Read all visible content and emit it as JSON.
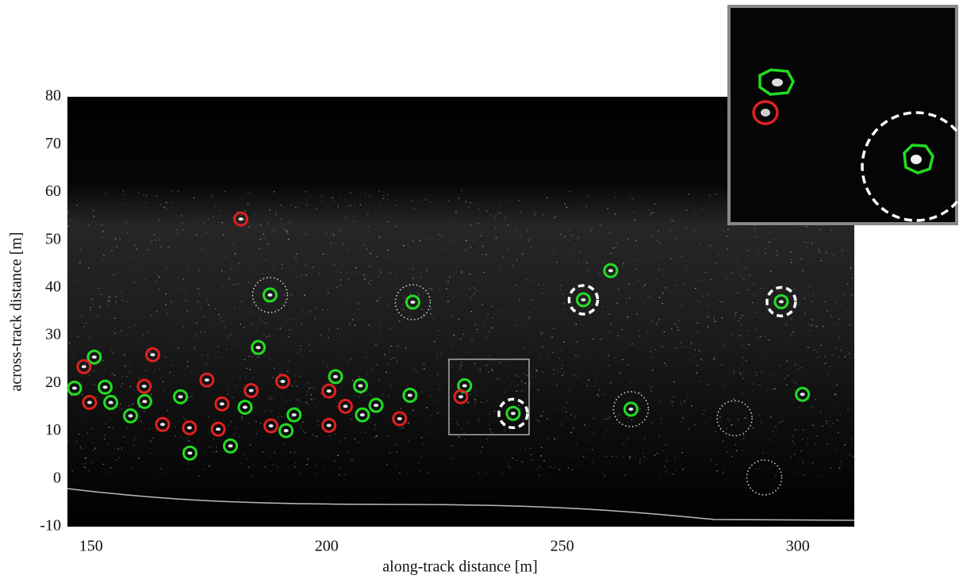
{
  "chart_data": {
    "type": "scatter",
    "x_label": "along-track distance [m]",
    "y_label": "across-track distance [m]",
    "xlim": [
      145,
      312
    ],
    "xticks": [
      150,
      200,
      250,
      300
    ],
    "ylim": [
      -10,
      80
    ],
    "yticks": [
      -10,
      0,
      10,
      20,
      30,
      40,
      50,
      60,
      70,
      80
    ],
    "grid": false,
    "series": [
      {
        "color": "#22dd22",
        "marker": "solid",
        "x": [
          188.0,
          218.3,
          254.5,
          296.5,
          260.3,
          185.5,
          150.7,
          146.5,
          153.0,
          154.2,
          158.4,
          161.4,
          169.0,
          182.7,
          171.0,
          179.6,
          191.4,
          193.1,
          201.9,
          207.2,
          207.6,
          210.5,
          217.7,
          229.3,
          239.6,
          264.6,
          301.0
        ],
        "values": [
          38.5,
          37.0,
          37.5,
          37.1,
          43.6,
          27.5,
          25.5,
          19.0,
          19.2,
          16.0,
          13.2,
          16.2,
          17.2,
          15.0,
          5.4,
          6.9,
          10.1,
          13.4,
          21.4,
          19.5,
          13.4,
          15.4,
          17.5,
          19.5,
          13.7,
          14.6,
          17.7
        ]
      },
      {
        "color": "#e02020",
        "marker": "solid",
        "x": [
          181.8,
          148.5,
          163.1,
          149.7,
          161.3,
          174.6,
          177.8,
          184.0,
          165.2,
          170.9,
          177.0,
          188.2,
          190.7,
          200.5,
          204.0,
          200.5,
          215.5,
          228.5
        ],
        "values": [
          54.4,
          23.5,
          26.0,
          16.0,
          19.4,
          20.7,
          15.7,
          18.5,
          11.4,
          10.7,
          10.4,
          11.1,
          20.4,
          18.4,
          15.2,
          11.2,
          12.6,
          17.2
        ]
      },
      {
        "color": "#ffffff",
        "marker": "dashed",
        "x": [
          254.5,
          296.5,
          239.6
        ],
        "values": [
          37.5,
          37.1,
          13.7
        ]
      },
      {
        "color": "#dddddd",
        "marker": "dotted",
        "x": [
          188.0,
          218.3,
          264.6,
          286.6,
          292.9
        ],
        "values": [
          38.5,
          37.0,
          14.6,
          12.7,
          0.3
        ]
      }
    ]
  }
}
